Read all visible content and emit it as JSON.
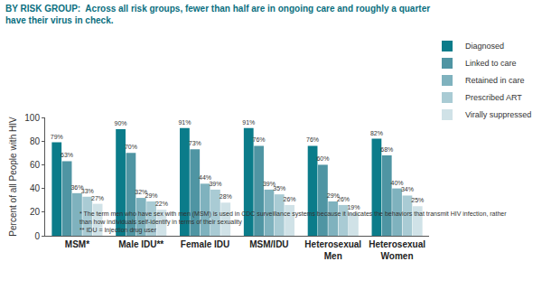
{
  "chart_data": {
    "type": "bar",
    "title": "BY RISK GROUP:  Across all risk groups, fewer than half are in ongoing care and roughly a quarter have their virus in check.",
    "ylabel": "Percent of all People with HIV",
    "categories": [
      "MSM*",
      "Male IDU**",
      "Female IDU",
      "MSM/IDU",
      "Heterosexual Men",
      "Heterosexual Women"
    ],
    "series": [
      {
        "name": "Diagnosed",
        "color": "#0b7c8a",
        "values": [
          79,
          90,
          91,
          91,
          76,
          82
        ],
        "value_labels": [
          "79%",
          "90%",
          "91%",
          "91%",
          "76%",
          "82%"
        ]
      },
      {
        "name": "Linked to care",
        "color": "#4f95a3",
        "values": [
          63,
          70,
          73,
          76,
          60,
          68
        ],
        "value_labels": [
          "63%",
          "70%",
          "73%",
          "76%",
          "60%",
          "68%"
        ]
      },
      {
        "name": "Retained in care",
        "color": "#7fb2be",
        "values": [
          36,
          32,
          44,
          39,
          29,
          40
        ],
        "value_labels": [
          "36%",
          "32%",
          "44%",
          "39%",
          "29%",
          "40%"
        ]
      },
      {
        "name": "Prescribed ART",
        "color": "#a9cbd4",
        "values": [
          33,
          29,
          39,
          35,
          26,
          34
        ],
        "value_labels": [
          "33%",
          "29%",
          "39%",
          "35%",
          "26%",
          "34%"
        ]
      },
      {
        "name": "Virally suppressed",
        "color": "#d0e2e7",
        "values": [
          27,
          22,
          28,
          26,
          19,
          25
        ],
        "value_labels": [
          "27%",
          "22%",
          "28%",
          "26%",
          "19%",
          "25%"
        ]
      }
    ],
    "ylim": [
      0,
      100
    ],
    "yticks": [
      0,
      20,
      40,
      60,
      80,
      100
    ],
    "grid": false,
    "legend": "top right",
    "data_labels": true,
    "annotations": [
      "* The term men who have sex with men (MSM) is used in CDC surveillance systems because it indicates the behaviors that transmit HIV infection, rather than how individuals self-identify in terms of their sexuality",
      "** IDU = Injection drug user"
    ]
  }
}
